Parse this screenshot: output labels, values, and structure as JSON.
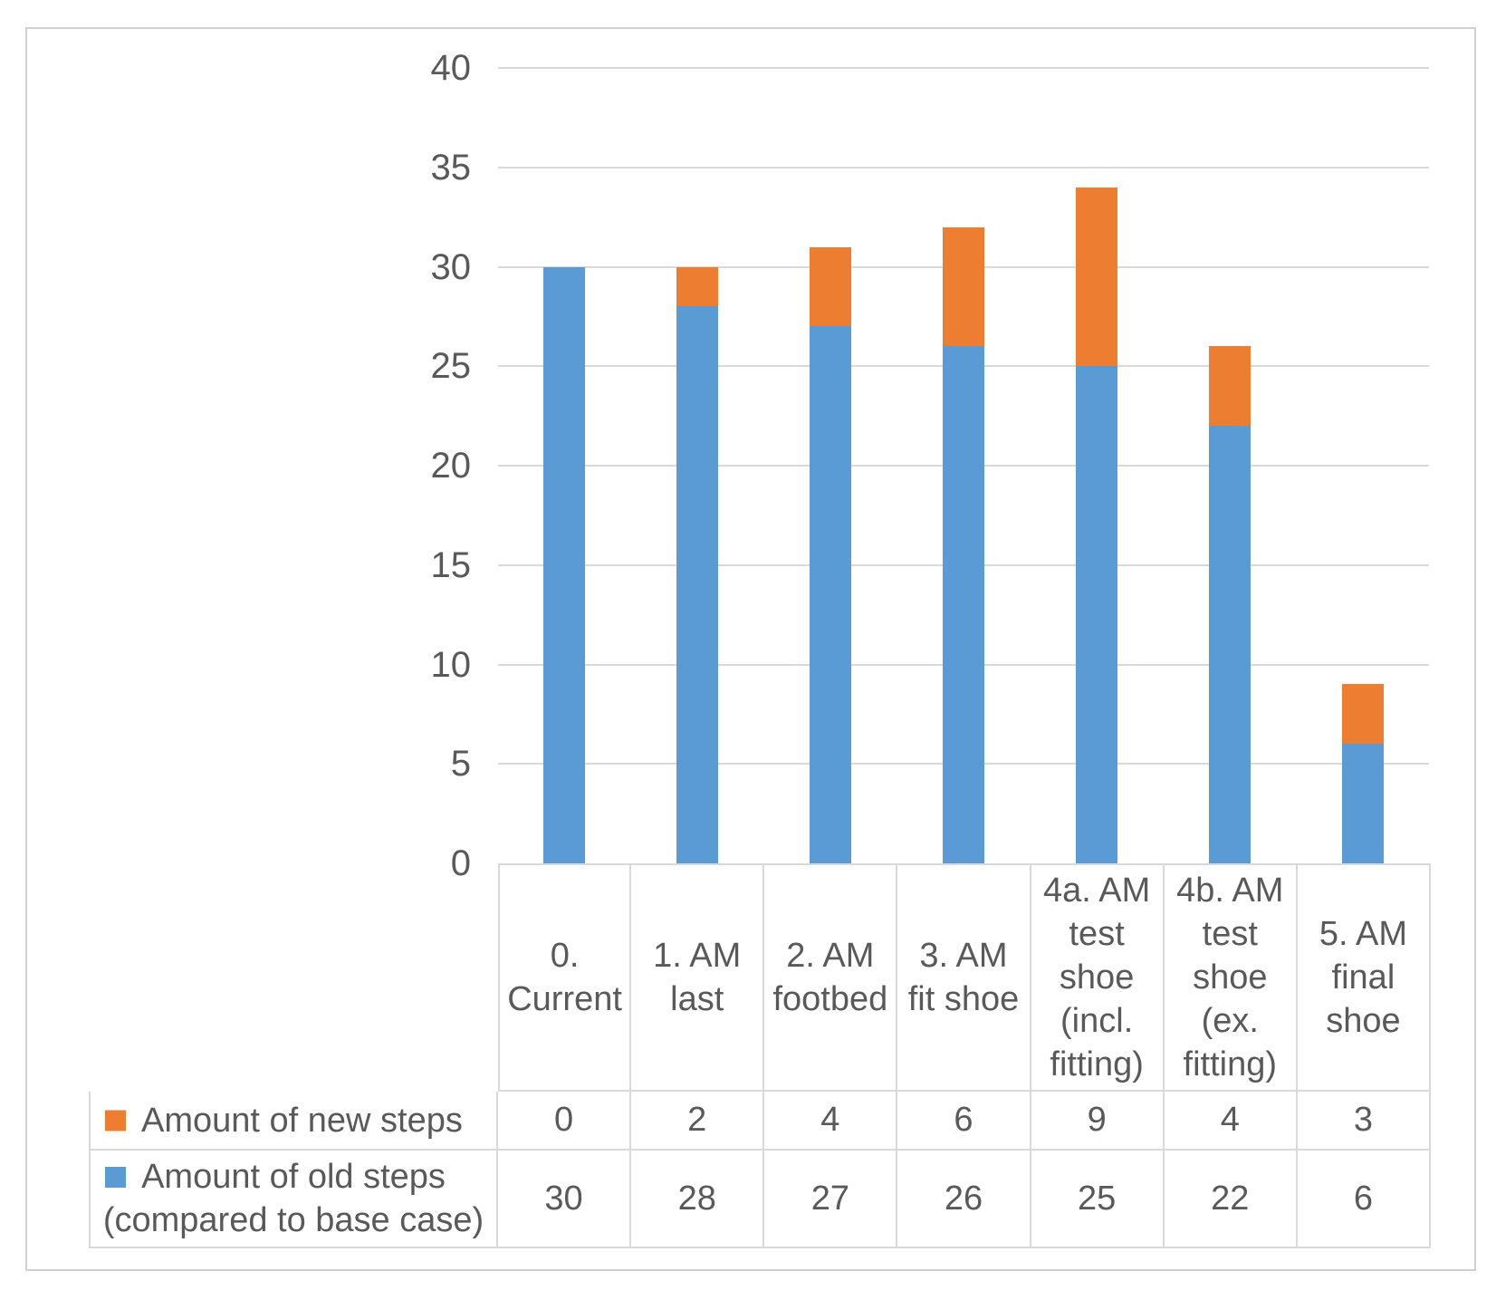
{
  "chart_data": {
    "type": "bar",
    "stacked": true,
    "title": "",
    "xlabel": "",
    "ylabel": "",
    "categories": [
      "0. Current",
      "1. AM last",
      "2. AM footbed",
      "3. AM fit shoe",
      "4a. AM test shoe (incl. fitting)",
      "4b. AM test shoe (ex. fitting)",
      "5. AM final shoe"
    ],
    "series": [
      {
        "name": "Amount of new steps",
        "label_lines": [
          "Amount of new steps"
        ],
        "color": "#ED7D31",
        "stack_position": "top",
        "values": [
          0,
          2,
          4,
          6,
          9,
          4,
          3
        ]
      },
      {
        "name": "Amount of old steps (compared to base case)",
        "label_lines": [
          "Amount of old steps",
          "(compared to base case)"
        ],
        "color": "#5B9BD5",
        "stack_position": "bottom",
        "values": [
          30,
          28,
          27,
          26,
          25,
          22,
          6
        ]
      }
    ],
    "ylim": [
      0,
      40
    ],
    "yticks": [
      0,
      5,
      10,
      15,
      20,
      25,
      30,
      35,
      40
    ],
    "grid": true,
    "legend_position": "data-table-left-column"
  },
  "colors": {
    "text": "#595959",
    "gridline": "#D9D9D9",
    "table_border": "#D9D9D9",
    "frame_border": "#D0D0D0",
    "background": "#FFFFFF"
  }
}
